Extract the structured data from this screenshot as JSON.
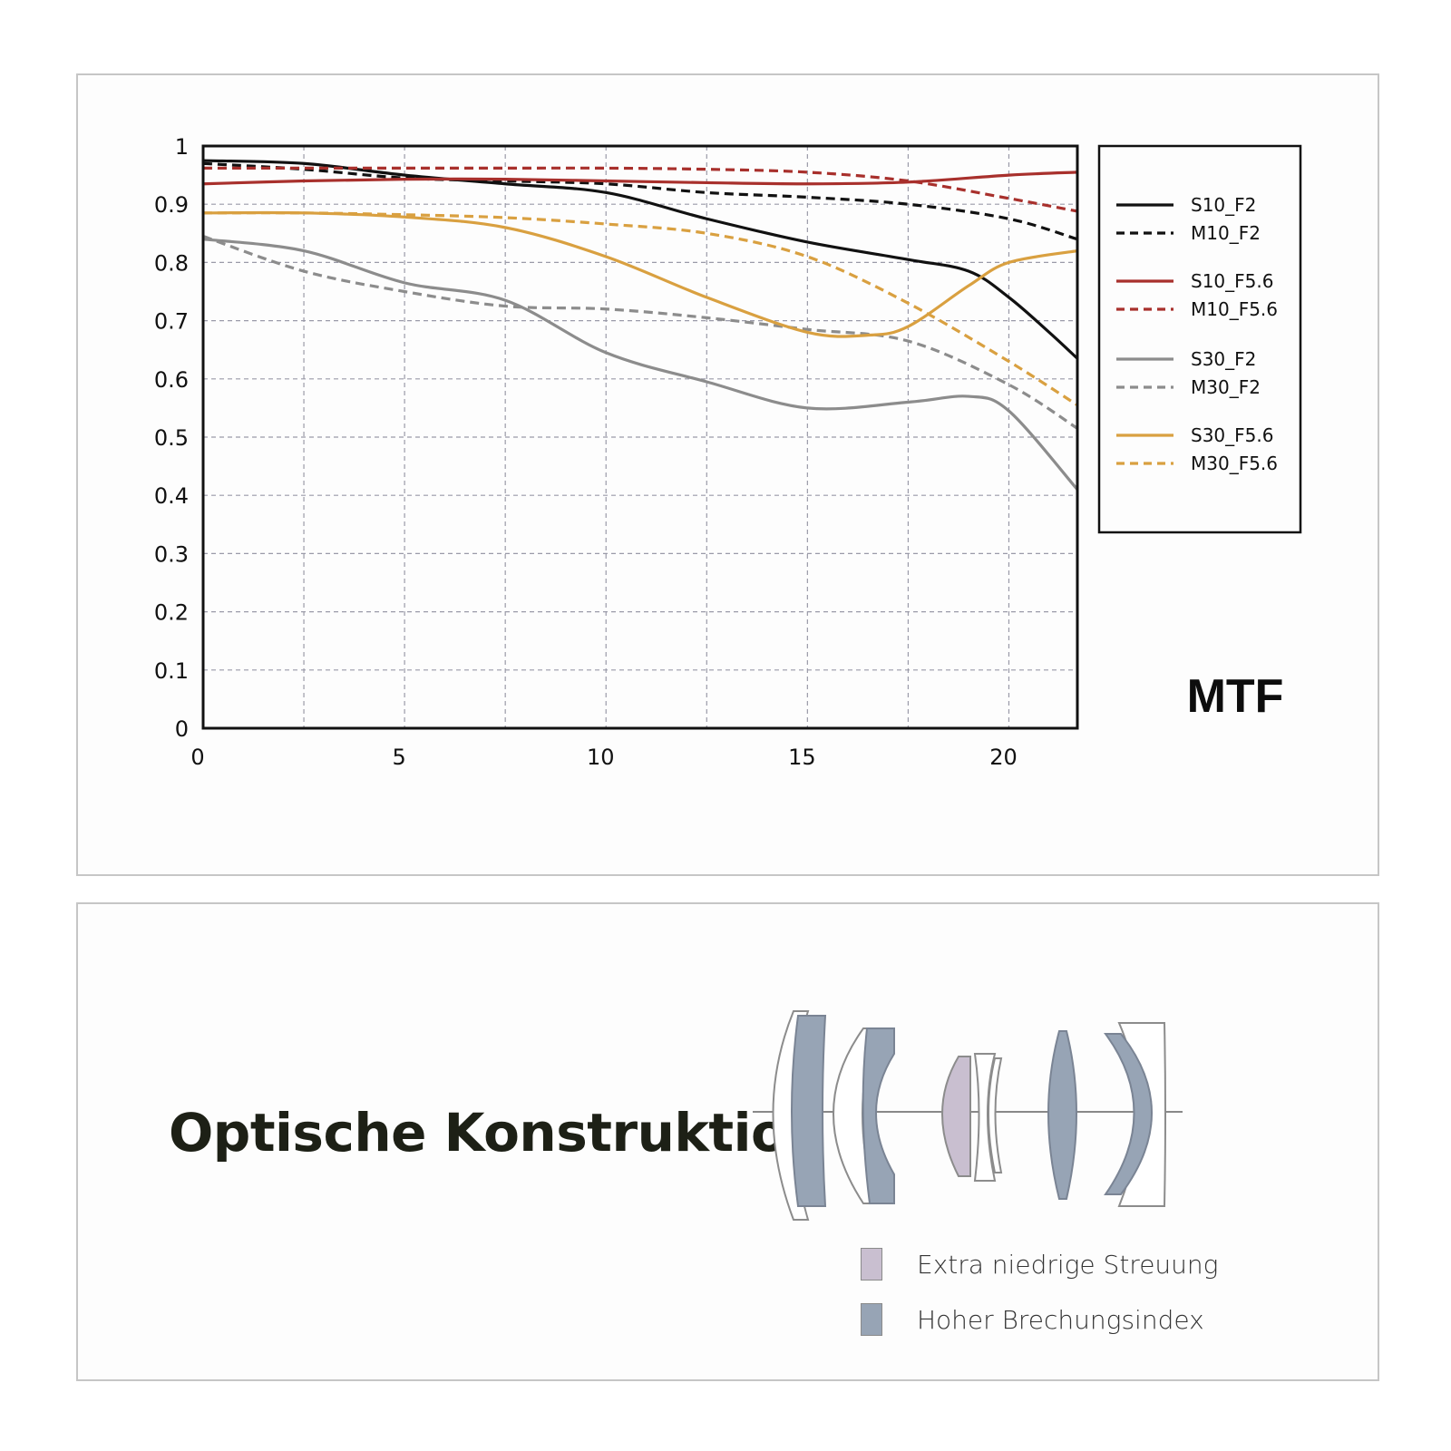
{
  "colors": {
    "black": "#111111",
    "red": "#a8302c",
    "gray": "#8c8c8c",
    "orange": "#d9a040",
    "ed_glass": "#c9bfd0",
    "hr_glass": "#97a4b5",
    "grid": "#9a9aa8"
  },
  "chart_data": {
    "type": "line",
    "title": "MTF",
    "xlabel": "",
    "ylabel": "",
    "xlim": [
      0,
      21.7
    ],
    "ylim": [
      0,
      1
    ],
    "x_ticks": [
      "0",
      "5",
      "10",
      "15",
      "20"
    ],
    "y_ticks": [
      "0",
      "0.1",
      "0.2",
      "0.3",
      "0.4",
      "0.5",
      "0.6",
      "0.7",
      "0.8",
      "0.9",
      "1"
    ],
    "grid": true,
    "legend_position": "right",
    "series": [
      {
        "name": "S10_F2",
        "color": "black",
        "dash": false,
        "x": [
          0,
          2.5,
          5,
          7.5,
          10,
          12.5,
          15,
          17.5,
          19,
          20,
          21,
          21.7
        ],
        "y": [
          0.975,
          0.97,
          0.95,
          0.935,
          0.92,
          0.875,
          0.835,
          0.805,
          0.785,
          0.74,
          0.68,
          0.635
        ]
      },
      {
        "name": "M10_F2",
        "color": "black",
        "dash": true,
        "x": [
          0,
          2.5,
          5,
          7.5,
          10,
          12.5,
          15,
          17.5,
          20,
          21.7
        ],
        "y": [
          0.97,
          0.96,
          0.945,
          0.94,
          0.935,
          0.92,
          0.912,
          0.9,
          0.875,
          0.84
        ]
      },
      {
        "name": "S10_F5.6",
        "color": "red",
        "dash": false,
        "x": [
          0,
          2.5,
          5,
          7.5,
          10,
          12.5,
          15,
          17.5,
          20,
          21.7
        ],
        "y": [
          0.935,
          0.94,
          0.943,
          0.943,
          0.94,
          0.937,
          0.935,
          0.938,
          0.95,
          0.955
        ]
      },
      {
        "name": "M10_F5.6",
        "color": "red",
        "dash": true,
        "x": [
          0,
          2.5,
          5,
          7.5,
          10,
          12.5,
          15,
          17.5,
          20,
          21.7
        ],
        "y": [
          0.962,
          0.962,
          0.962,
          0.962,
          0.962,
          0.96,
          0.955,
          0.94,
          0.91,
          0.888
        ]
      },
      {
        "name": "S30_F2",
        "color": "gray",
        "dash": false,
        "x": [
          0,
          2.5,
          5,
          7.5,
          10,
          12.5,
          15,
          17.5,
          19,
          20,
          21.7
        ],
        "y": [
          0.84,
          0.82,
          0.765,
          0.735,
          0.645,
          0.595,
          0.55,
          0.56,
          0.57,
          0.545,
          0.41
        ]
      },
      {
        "name": "M30_F2",
        "color": "gray",
        "dash": true,
        "x": [
          0,
          2.5,
          5,
          7.5,
          10,
          12.5,
          15,
          17.5,
          20,
          21.7
        ],
        "y": [
          0.845,
          0.785,
          0.75,
          0.725,
          0.72,
          0.705,
          0.685,
          0.665,
          0.59,
          0.515
        ]
      },
      {
        "name": "S30_F5.6",
        "color": "orange",
        "dash": false,
        "x": [
          0,
          2.5,
          5,
          7.5,
          10,
          12.5,
          15,
          16.5,
          17.5,
          19,
          20,
          21.7
        ],
        "y": [
          0.885,
          0.885,
          0.878,
          0.86,
          0.81,
          0.74,
          0.68,
          0.675,
          0.69,
          0.76,
          0.8,
          0.82
        ]
      },
      {
        "name": "M30_F5.6",
        "color": "orange",
        "dash": true,
        "x": [
          0,
          2.5,
          5,
          7.5,
          10,
          12.5,
          15,
          17.5,
          20,
          21.7
        ],
        "y": [
          0.885,
          0.885,
          0.882,
          0.877,
          0.866,
          0.85,
          0.81,
          0.73,
          0.63,
          0.555
        ]
      }
    ]
  },
  "optics": {
    "title": "Optische Konstruktion",
    "legend": [
      {
        "label": "Extra niedrige Streuung",
        "color": "ed_glass"
      },
      {
        "label": "Hoher Brechungsindex",
        "color": "hr_glass"
      }
    ]
  }
}
